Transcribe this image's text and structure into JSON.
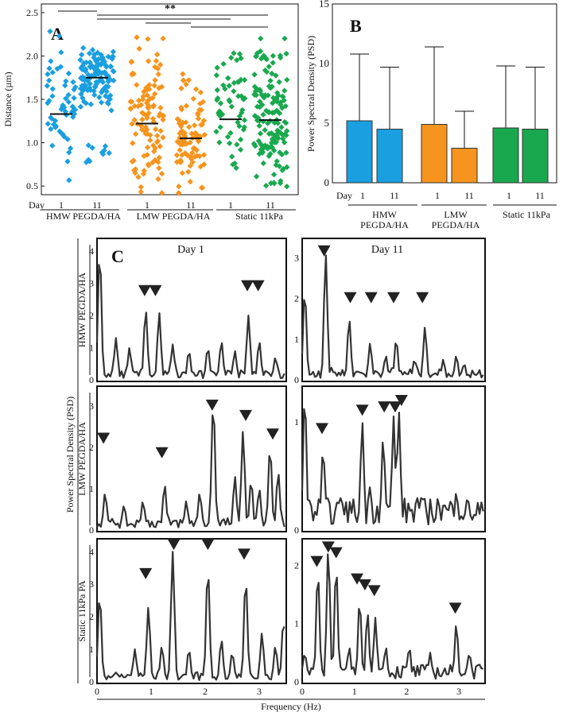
{
  "chart_data": [
    {
      "panel": "A",
      "type": "scatter",
      "ylabel": "Distance (µm)",
      "ylim": [
        0.4,
        2.6
      ],
      "yticks": [
        0.5,
        1.0,
        1.5,
        2.0,
        2.5
      ],
      "day_label": "Day",
      "categories": [
        "1",
        "11",
        "1",
        "11",
        "1",
        "11"
      ],
      "groups": [
        {
          "name": "HMW PEGDA/HA",
          "color": "#1a9fe0"
        },
        {
          "name": "LMW PEGDA/HA",
          "color": "#f7941d"
        },
        {
          "name": "Static 11kPa",
          "color": "#1aa84f"
        }
      ],
      "series": [
        {
          "group": "HMW PEGDA/HA",
          "day": "1",
          "mean": 1.33,
          "center": 1.4,
          "spread": 0.55,
          "count": 55
        },
        {
          "group": "HMW PEGDA/HA",
          "day": "11",
          "mean": 1.75,
          "center": 1.75,
          "spread": 0.22,
          "count": 120,
          "low_cluster": 0.85,
          "low_count": 10
        },
        {
          "group": "LMW PEGDA/HA",
          "day": "1",
          "mean": 1.22,
          "center": 1.3,
          "spread": 0.6,
          "count": 110
        },
        {
          "group": "LMW PEGDA/HA",
          "day": "11",
          "mean": 1.05,
          "center": 1.05,
          "spread": 0.45,
          "count": 90
        },
        {
          "group": "Static 11kPa",
          "day": "1",
          "mean": 1.27,
          "center": 1.3,
          "spread": 0.55,
          "count": 55
        },
        {
          "group": "Static 11kPa",
          "day": "11",
          "mean": 1.26,
          "center": 1.3,
          "spread": 0.6,
          "count": 150
        }
      ],
      "significance": "**"
    },
    {
      "panel": "B",
      "type": "bar",
      "ylabel": "Power Spectral Density (PSD)",
      "ylim": [
        0,
        15
      ],
      "yticks": [
        0,
        5,
        10,
        15
      ],
      "day_label": "Day",
      "categories": [
        "1",
        "11",
        "1",
        "11",
        "1",
        "11"
      ],
      "groups": [
        {
          "name": "HMW PEGDA/HA",
          "color": "#1a9fe0"
        },
        {
          "name": "LMW PEGDA/HA",
          "color": "#f7941d"
        },
        {
          "name": "Static 11kPa",
          "color": "#1aa84f"
        }
      ],
      "values": [
        5.2,
        4.5,
        4.9,
        2.9,
        4.6,
        4.5
      ],
      "errors_upper": [
        10.8,
        9.7,
        11.4,
        6.0,
        9.8,
        9.7
      ]
    },
    {
      "panel": "C",
      "type": "line",
      "xlabel": "Frequency (Hz)",
      "ylabel": "Power Spectral Density (PSD)",
      "columns": [
        "Day 1",
        "Day 11"
      ],
      "rows": [
        "HMW PEGDA/HA",
        "LMW PEGDA/HA",
        "Static 11kPa PA"
      ],
      "x_ticks": [
        0,
        1,
        2,
        3
      ],
      "xlim": [
        0,
        3.5
      ],
      "subplots": [
        {
          "row": 0,
          "col": 0,
          "ylim": [
            0,
            4.3
          ],
          "yticks": [
            0,
            1,
            2,
            3,
            4
          ],
          "peaks": [
            [
              0.05,
              4.0
            ],
            [
              0.35,
              1.3
            ],
            [
              0.6,
              1.0
            ],
            [
              0.9,
              2.2
            ],
            [
              1.15,
              2.1
            ],
            [
              1.4,
              1.1
            ],
            [
              1.7,
              0.9
            ],
            [
              2.05,
              1.0
            ],
            [
              2.3,
              1.2
            ],
            [
              2.55,
              0.9
            ],
            [
              2.8,
              2.0
            ],
            [
              3.0,
              1.2
            ],
            [
              3.3,
              0.7
            ]
          ],
          "markers": [
            [
              0.88,
              2.75
            ],
            [
              1.08,
              2.75
            ],
            [
              2.78,
              2.9
            ],
            [
              2.98,
              2.9
            ]
          ]
        },
        {
          "row": 0,
          "col": 1,
          "ylim": [
            0,
            3.4
          ],
          "yticks": [
            0,
            1,
            2,
            3
          ],
          "peaks": [
            [
              0.05,
              2.2
            ],
            [
              0.45,
              3.1
            ],
            [
              0.9,
              1.5
            ],
            [
              1.3,
              0.9
            ],
            [
              1.6,
              0.6
            ],
            [
              1.8,
              1.0
            ],
            [
              2.15,
              0.5
            ],
            [
              2.35,
              1.3
            ],
            [
              2.7,
              0.5
            ],
            [
              2.95,
              0.6
            ],
            [
              3.1,
              0.4
            ]
          ],
          "markers": [
            [
              0.42,
              3.15
            ],
            [
              0.92,
              2.0
            ],
            [
              1.32,
              2.0
            ],
            [
              1.75,
              2.0
            ],
            [
              2.3,
              2.0
            ]
          ]
        },
        {
          "row": 1,
          "col": 0,
          "ylim": [
            0,
            3.4
          ],
          "yticks": [
            0,
            1,
            2,
            3
          ],
          "peaks": [
            [
              0.15,
              0.9
            ],
            [
              0.5,
              0.6
            ],
            [
              0.85,
              0.7
            ],
            [
              1.25,
              1.1
            ],
            [
              1.65,
              0.7
            ],
            [
              1.9,
              0.9
            ],
            [
              2.15,
              3.1
            ],
            [
              2.55,
              1.3
            ],
            [
              2.7,
              2.4
            ],
            [
              2.85,
              1.2
            ],
            [
              3.0,
              1.0
            ],
            [
              3.2,
              2.0
            ],
            [
              3.35,
              1.4
            ]
          ],
          "markers": [
            [
              0.12,
              2.2
            ],
            [
              1.2,
              1.85
            ],
            [
              2.13,
              3.0
            ],
            [
              2.75,
              2.75
            ],
            [
              3.25,
              2.3
            ]
          ]
        },
        {
          "row": 1,
          "col": 1,
          "ylim": [
            0,
            1.3
          ],
          "yticks": [
            0,
            1
          ],
          "peaks": [
            [
              0.05,
              1.25
            ],
            [
              0.4,
              0.75
            ],
            [
              0.75,
              0.3
            ],
            [
              1.15,
              1.0
            ],
            [
              1.3,
              0.4
            ],
            [
              1.55,
              0.85
            ],
            [
              1.75,
              1.05
            ],
            [
              1.85,
              1.1
            ],
            [
              2.2,
              0.3
            ],
            [
              2.6,
              0.3
            ],
            [
              2.95,
              0.35
            ]
          ],
          "markers": [
            [
              0.38,
              0.93
            ],
            [
              1.15,
              1.1
            ],
            [
              1.57,
              1.13
            ],
            [
              1.78,
              1.13
            ],
            [
              1.9,
              1.19
            ]
          ]
        },
        {
          "row": 2,
          "col": 0,
          "ylim": [
            0,
            4.3
          ],
          "yticks": [
            0,
            1,
            2,
            3,
            4
          ],
          "peaks": [
            [
              0.05,
              2.7
            ],
            [
              0.7,
              1.0
            ],
            [
              0.95,
              2.3
            ],
            [
              1.2,
              1.1
            ],
            [
              1.4,
              4.0
            ],
            [
              1.7,
              1.0
            ],
            [
              2.05,
              3.5
            ],
            [
              2.3,
              1.3
            ],
            [
              2.5,
              0.9
            ],
            [
              2.75,
              3.2
            ],
            [
              3.05,
              1.5
            ],
            [
              3.3,
              1.1
            ],
            [
              3.45,
              1.9
            ]
          ],
          "markers": [
            [
              0.9,
              3.3
            ],
            [
              1.42,
              4.2
            ],
            [
              2.05,
              4.2
            ],
            [
              2.72,
              3.9
            ]
          ]
        },
        {
          "row": 2,
          "col": 1,
          "ylim": [
            0,
            2.4
          ],
          "yticks": [
            0,
            1,
            2
          ],
          "peaks": [
            [
              0.05,
              0.5
            ],
            [
              0.3,
              1.9
            ],
            [
              0.5,
              2.3
            ],
            [
              0.65,
              2.0
            ],
            [
              0.9,
              0.6
            ],
            [
              1.1,
              1.4
            ],
            [
              1.25,
              1.2
            ],
            [
              1.4,
              1.1
            ],
            [
              1.6,
              0.6
            ],
            [
              2.05,
              0.6
            ],
            [
              2.45,
              0.5
            ],
            [
              2.95,
              1.0
            ],
            [
              3.2,
              0.5
            ]
          ],
          "markers": [
            [
              0.28,
              2.05
            ],
            [
              0.5,
              2.3
            ],
            [
              0.65,
              2.2
            ],
            [
              1.05,
              1.75
            ],
            [
              1.2,
              1.65
            ],
            [
              1.38,
              1.55
            ],
            [
              2.93,
              1.25
            ]
          ]
        }
      ]
    }
  ]
}
